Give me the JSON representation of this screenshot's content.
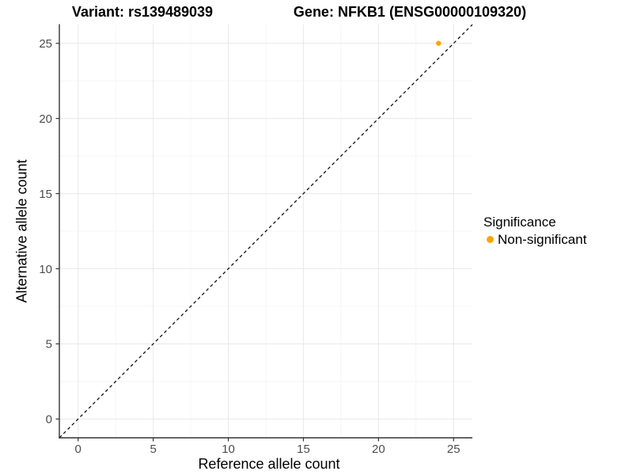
{
  "colors": {
    "background": "#FFFFFF",
    "point": "#FFA500",
    "grid_major": "#EBEBEB",
    "grid_minor": "#F4F4F4",
    "axis_line": "#333333",
    "tick_mark": "#333333",
    "tick_label": "#4D4D4D",
    "reference_line": "#000000",
    "title_text": "#000000"
  },
  "chart_data": {
    "type": "scatter",
    "titles": [
      "Variant: rs139489039",
      "Gene: NFKB1 (ENSG00000109320)"
    ],
    "xlabel": "Reference allele count",
    "ylabel": "Alternative allele count",
    "xlim": [
      -1.25,
      26.25
    ],
    "ylim": [
      -1.25,
      26.25
    ],
    "xticks": [
      0,
      5,
      10,
      15,
      20,
      25
    ],
    "yticks": [
      0,
      5,
      10,
      15,
      20,
      25
    ],
    "minor_xticks": [
      2.5,
      7.5,
      12.5,
      17.5,
      22.5
    ],
    "minor_yticks": [
      2.5,
      7.5,
      12.5,
      17.5,
      22.5
    ],
    "grid": "major and minor, light gray on white",
    "series": [
      {
        "name": "Non-significant",
        "color": "#FFA500",
        "points": [
          {
            "x": 24,
            "y": 25
          }
        ]
      }
    ],
    "reference_line": {
      "equation": "y = x",
      "style": "dashed",
      "color": "#000000"
    },
    "legend": {
      "title": "Significance",
      "position": "right",
      "items": [
        {
          "label": "Non-significant",
          "color": "#FFA500"
        }
      ]
    }
  }
}
